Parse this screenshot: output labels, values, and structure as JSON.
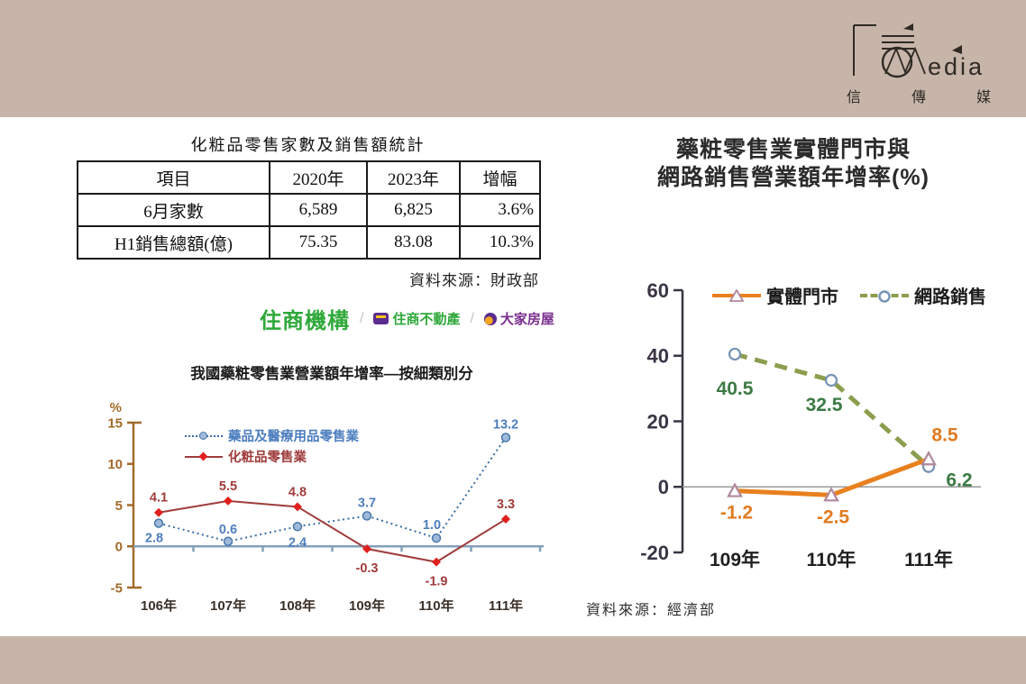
{
  "page": {
    "background": "#ffffff",
    "band_color": "#c7b5a9"
  },
  "brand": {
    "name_latin": "edia",
    "name_cjk": [
      "信",
      "傳",
      "媒"
    ]
  },
  "table_section": {
    "title": "化粧品零售家數及銷售額統計",
    "columns": [
      "項目",
      "2020年",
      "2023年",
      "增幅"
    ],
    "rows": [
      [
        "6月家數",
        "6,589",
        "6,825",
        "3.6%"
      ],
      [
        "H1銷售總額(億)",
        "75.35",
        "83.08",
        "10.3%"
      ]
    ],
    "source": "資料來源：財政部"
  },
  "partner_logos": {
    "main": "住商機構",
    "separator": "/",
    "brand1": "住商不動產",
    "brand2": "大家房屋"
  },
  "chart_data": [
    {
      "type": "line",
      "title": "我國藥粧零售業營業額年增率—按細類別分",
      "ylabel": "%",
      "xlabel": "",
      "ylim": [
        -5,
        15
      ],
      "yticks": [
        15,
        10,
        5,
        0,
        -5
      ],
      "categories": [
        "106年",
        "107年",
        "108年",
        "109年",
        "110年",
        "111年"
      ],
      "grid": false,
      "legend_position": "top-left-inside",
      "series": [
        {
          "name": "藥品及醫療用品零售業",
          "values": [
            2.8,
            0.6,
            2.4,
            3.7,
            1.0,
            13.2
          ],
          "color": "#3a6ea5",
          "label_color": "#4d7ebf",
          "line_style": "dotted",
          "line_width": 2,
          "marker": "circle",
          "marker_fill": "#9fb9da",
          "marker_stroke": "#4a78ab",
          "label_offsets": [
            [
              -5,
              21
            ],
            [
              0,
              -9
            ],
            [
              0,
              22
            ],
            [
              0,
              -10
            ],
            [
              -5,
              -10
            ],
            [
              0,
              -10
            ]
          ]
        },
        {
          "name": "化粧品零售業",
          "values": [
            4.1,
            5.5,
            4.8,
            -0.3,
            -1.9,
            3.3
          ],
          "color": "#a03c3c",
          "label_color": "#a03c3c",
          "line_style": "solid",
          "line_width": 2,
          "marker": "diamond",
          "marker_fill": "#e0201e",
          "marker_stroke": "none",
          "label_offsets": [
            [
              0,
              -12
            ],
            [
              0,
              -12
            ],
            [
              0,
              -12
            ],
            [
              0,
              26
            ],
            [
              0,
              26
            ],
            [
              0,
              -12
            ]
          ]
        }
      ]
    },
    {
      "type": "line",
      "title_lines": [
        "藥粧零售業實體門市與",
        "網路銷售營業額年增率(%)"
      ],
      "ylabel": "",
      "xlabel": "",
      "ylim": [
        -20,
        60
      ],
      "yticks": [
        60,
        40,
        20,
        0,
        -20
      ],
      "categories": [
        "109年",
        "110年",
        "111年"
      ],
      "grid": false,
      "legend_position": "top-inside",
      "source": "資料來源：經濟部",
      "series": [
        {
          "name": "實體門市",
          "values": [
            -1.2,
            -2.5,
            8.5
          ],
          "color": "#e8801e",
          "label_color": "#e07b20",
          "line_style": "solid",
          "line_width": 5,
          "marker": "triangle",
          "marker_fill": "#ffffff",
          "marker_stroke": "#b0889c",
          "label_offsets": [
            [
              2,
              31
            ],
            [
              2,
              31
            ],
            [
              18,
              -20
            ]
          ]
        },
        {
          "name": "網路銷售",
          "values": [
            40.5,
            32.5,
            6.2
          ],
          "color": "#8b9e4e",
          "label_color": "#3c7a44",
          "line_style": "dashed",
          "line_width": 5,
          "marker": "circle",
          "marker_fill": "#ffffff",
          "marker_stroke": "#7793b5",
          "label_offsets": [
            [
              0,
              45
            ],
            [
              -8,
              34
            ],
            [
              34,
              22
            ]
          ]
        }
      ]
    }
  ]
}
